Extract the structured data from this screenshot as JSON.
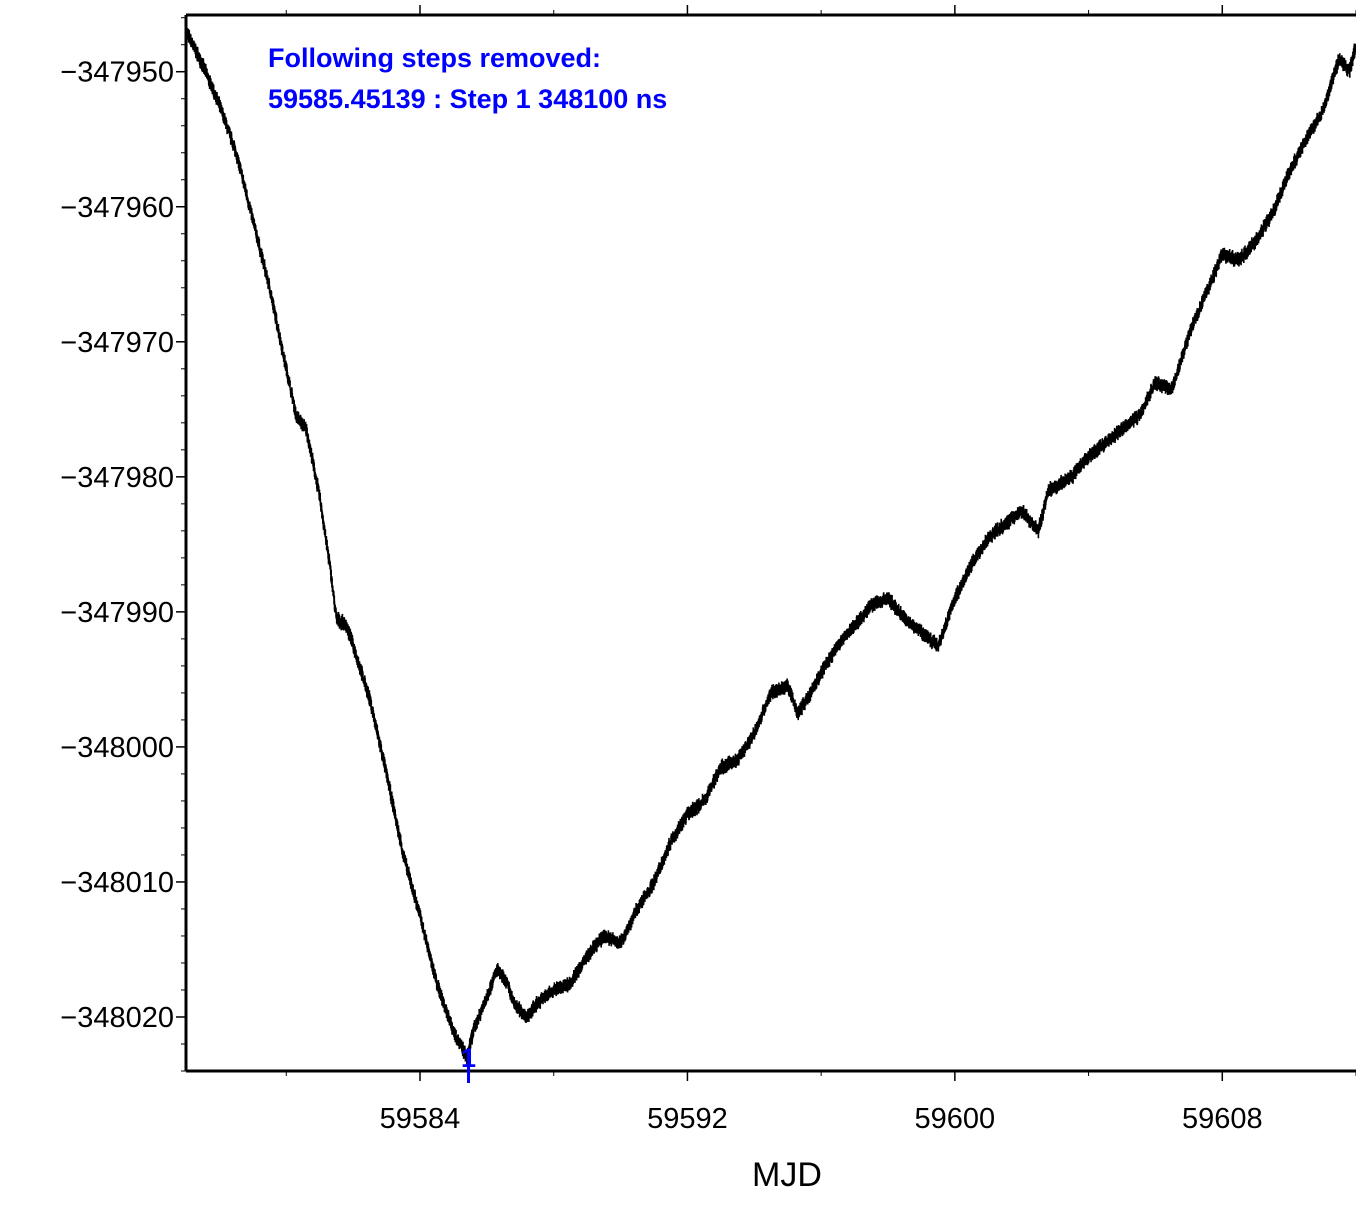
{
  "chart_data": {
    "type": "scatter",
    "title": "",
    "xlabel": "MJD",
    "ylabel": "",
    "xlim": [
      59577.0,
      59612.0
    ],
    "ylim": [
      -348024.0,
      -347945.8
    ],
    "x_ticks": [
      59584,
      59592,
      59600,
      59608
    ],
    "x_tick_labels": [
      "59584",
      "59592",
      "59600",
      "59608"
    ],
    "y_ticks": [
      -347950,
      -347960,
      -347970,
      -347980,
      -347990,
      -348000,
      -348010,
      -348020
    ],
    "y_tick_labels": [
      "−347950",
      "−347960",
      "−347970",
      "−347980",
      "−347990",
      "−348000",
      "−348010",
      "−348020"
    ],
    "grid": false,
    "legend": "none",
    "annotations": [
      {
        "text": "Following steps removed:"
      },
      {
        "text": "59585.45139 : Step 1 348100 ns"
      }
    ],
    "step_markers": [
      {
        "x": 59585.45139,
        "label": "1"
      }
    ],
    "series": [
      {
        "color": "#000000",
        "anchor_points": [
          [
            59577.0,
            -347947.0
          ],
          [
            59577.5,
            -347949.5
          ],
          [
            59578.0,
            -347952.5
          ],
          [
            59578.5,
            -347956.0
          ],
          [
            59579.0,
            -347961.0
          ],
          [
            59579.5,
            -347966.0
          ],
          [
            59580.0,
            -347972.0
          ],
          [
            59580.3,
            -347975.5
          ],
          [
            59580.6,
            -347976.5
          ],
          [
            59581.0,
            -347981.5
          ],
          [
            59581.3,
            -347986.5
          ],
          [
            59581.5,
            -347990.5
          ],
          [
            59581.8,
            -347991.0
          ],
          [
            59582.0,
            -347992.5
          ],
          [
            59582.5,
            -347996.5
          ],
          [
            59583.0,
            -348002.0
          ],
          [
            59583.5,
            -348008.0
          ],
          [
            59584.0,
            -348012.5
          ],
          [
            59584.5,
            -348017.5
          ],
          [
            59585.0,
            -348021.0
          ],
          [
            59585.4,
            -348023.0
          ],
          [
            59585.6,
            -348021.0
          ],
          [
            59586.0,
            -348018.5
          ],
          [
            59586.3,
            -348016.5
          ],
          [
            59586.6,
            -348017.5
          ],
          [
            59586.8,
            -348019.0
          ],
          [
            59587.2,
            -348020.0
          ],
          [
            59587.5,
            -348019.0
          ],
          [
            59588.0,
            -348018.0
          ],
          [
            59588.5,
            -348017.5
          ],
          [
            59589.0,
            -348015.5
          ],
          [
            59589.5,
            -348014.0
          ],
          [
            59590.0,
            -348014.5
          ],
          [
            59590.5,
            -348012.0
          ],
          [
            59591.0,
            -348010.0
          ],
          [
            59591.5,
            -348007.0
          ],
          [
            59592.0,
            -348005.0
          ],
          [
            59592.5,
            -348004.0
          ],
          [
            59593.0,
            -348001.5
          ],
          [
            59593.5,
            -348001.0
          ],
          [
            59594.0,
            -347999.0
          ],
          [
            59594.5,
            -347996.0
          ],
          [
            59595.0,
            -347995.5
          ],
          [
            59595.3,
            -347997.5
          ],
          [
            59595.7,
            -347996.0
          ],
          [
            59596.0,
            -347994.5
          ],
          [
            59596.5,
            -347992.5
          ],
          [
            59597.0,
            -347991.0
          ],
          [
            59597.5,
            -347989.5
          ],
          [
            59598.0,
            -347989.0
          ],
          [
            59598.5,
            -347990.5
          ],
          [
            59599.0,
            -347991.5
          ],
          [
            59599.5,
            -347992.5
          ],
          [
            59600.0,
            -347989.0
          ],
          [
            59600.5,
            -347986.5
          ],
          [
            59601.0,
            -347984.5
          ],
          [
            59601.5,
            -347983.5
          ],
          [
            59602.0,
            -347982.5
          ],
          [
            59602.5,
            -347984.0
          ],
          [
            59602.8,
            -347981.0
          ],
          [
            59603.5,
            -347980.0
          ],
          [
            59604.0,
            -347978.5
          ],
          [
            59604.5,
            -347977.5
          ],
          [
            59605.0,
            -347976.5
          ],
          [
            59605.5,
            -347975.5
          ],
          [
            59606.0,
            -347973.0
          ],
          [
            59606.5,
            -347973.5
          ],
          [
            59607.0,
            -347969.5
          ],
          [
            59607.5,
            -347966.5
          ],
          [
            59608.0,
            -347963.5
          ],
          [
            59608.5,
            -347964.0
          ],
          [
            59609.0,
            -347962.5
          ],
          [
            59609.5,
            -347960.5
          ],
          [
            59610.0,
            -347957.5
          ],
          [
            59610.5,
            -347955.0
          ],
          [
            59611.0,
            -347953.0
          ],
          [
            59611.5,
            -347949.0
          ],
          [
            59611.8,
            -347950.0
          ],
          [
            59612.0,
            -347948.0
          ]
        ]
      }
    ]
  }
}
